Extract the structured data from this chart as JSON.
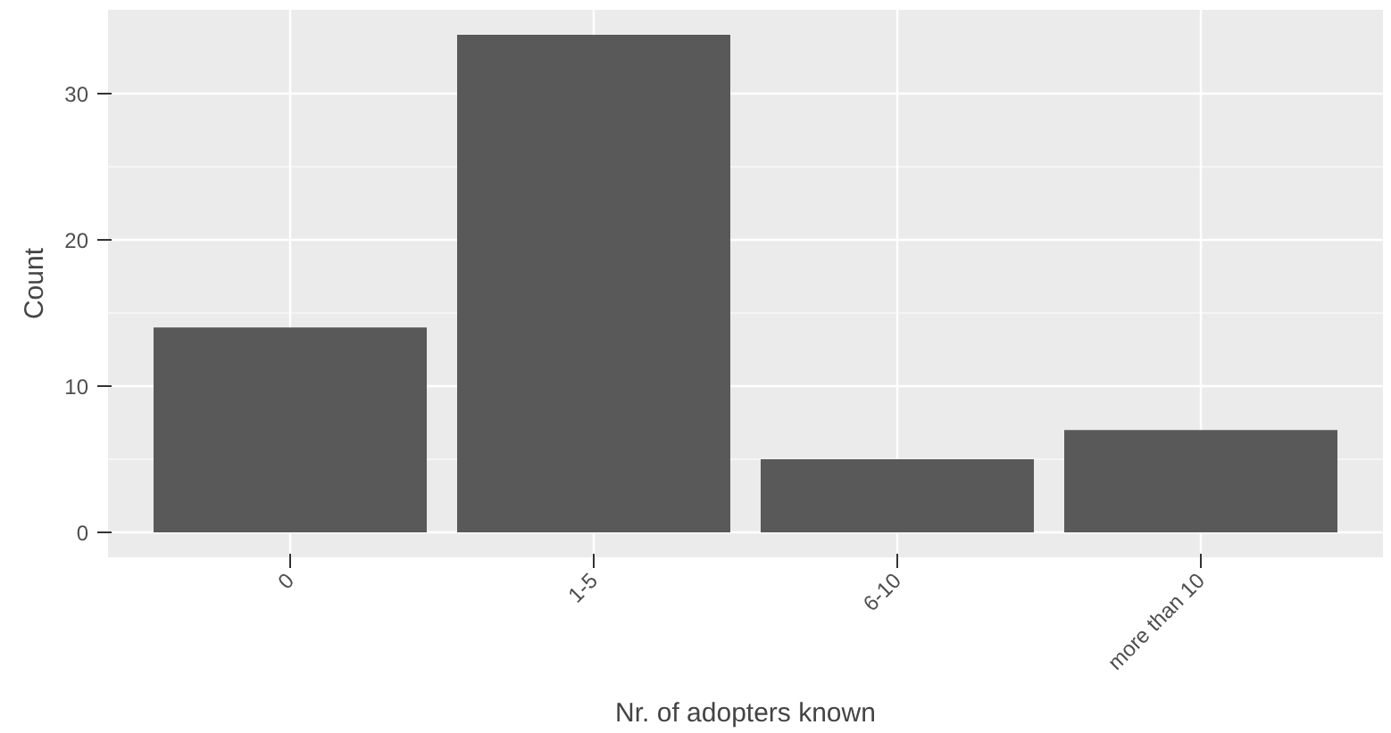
{
  "chart_data": {
    "type": "bar",
    "xlabel": "Nr. of adopters known",
    "ylabel": "Count",
    "categories": [
      "0",
      "1-5",
      "6-10",
      "more than 10"
    ],
    "values": [
      14,
      34,
      5,
      7
    ],
    "color": "#595959",
    "ylim": [
      -1.7,
      35.7
    ],
    "yticks": [
      0,
      10,
      20,
      30
    ],
    "grid": true
  }
}
